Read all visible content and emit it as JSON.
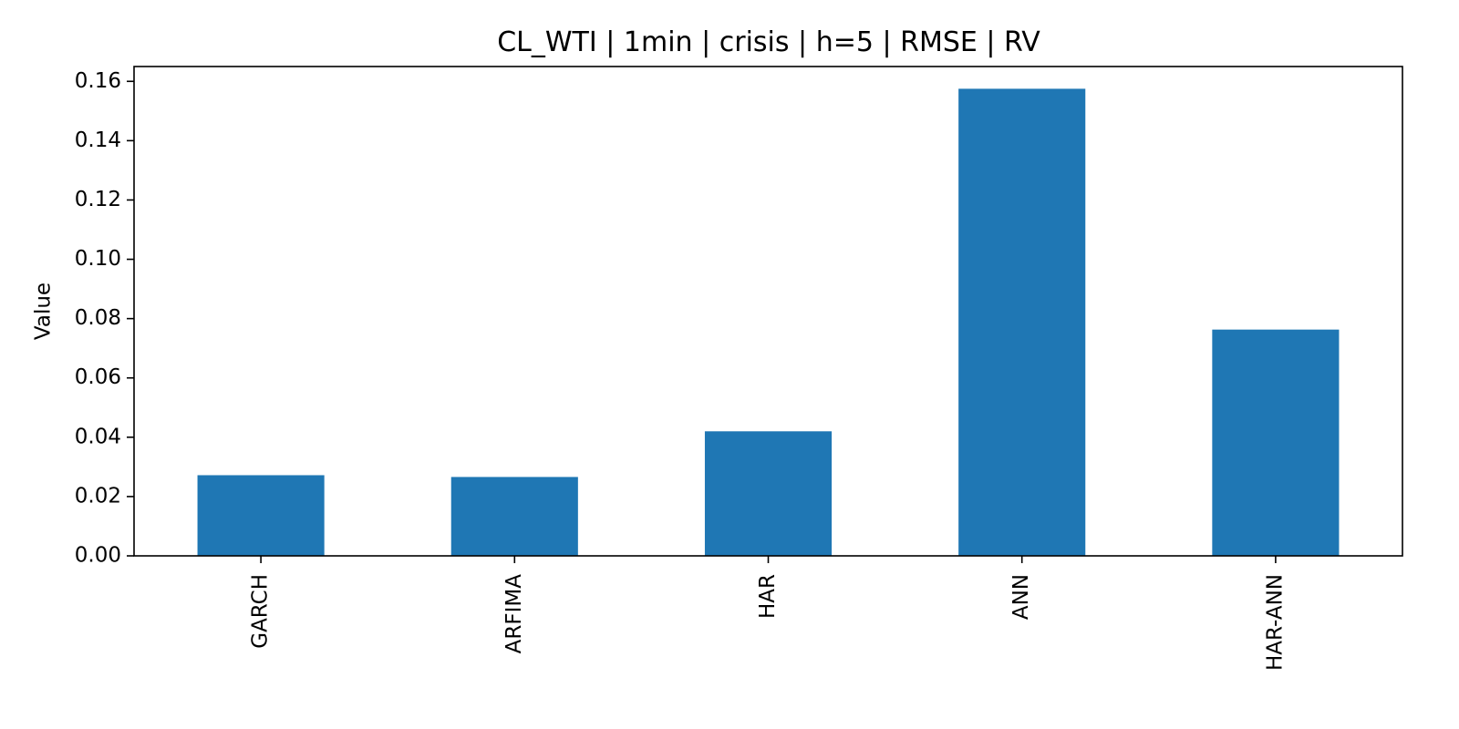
{
  "chart_data": {
    "type": "bar",
    "title": "CL_WTI | 1min | crisis | h=5 | RMSE | RV",
    "xlabel": "",
    "ylabel": "Value",
    "categories": [
      "GARCH",
      "ARFIMA",
      "HAR",
      "ANN",
      "HAR-ANN"
    ],
    "values": [
      0.0272,
      0.0266,
      0.042,
      0.1575,
      0.0763
    ],
    "ylim": [
      0,
      0.165
    ],
    "yticks": [
      "0.00",
      "0.02",
      "0.04",
      "0.06",
      "0.08",
      "0.10",
      "0.12",
      "0.14",
      "0.16"
    ],
    "bar_color": "#1f77b4",
    "grid": false,
    "legend": "none"
  }
}
